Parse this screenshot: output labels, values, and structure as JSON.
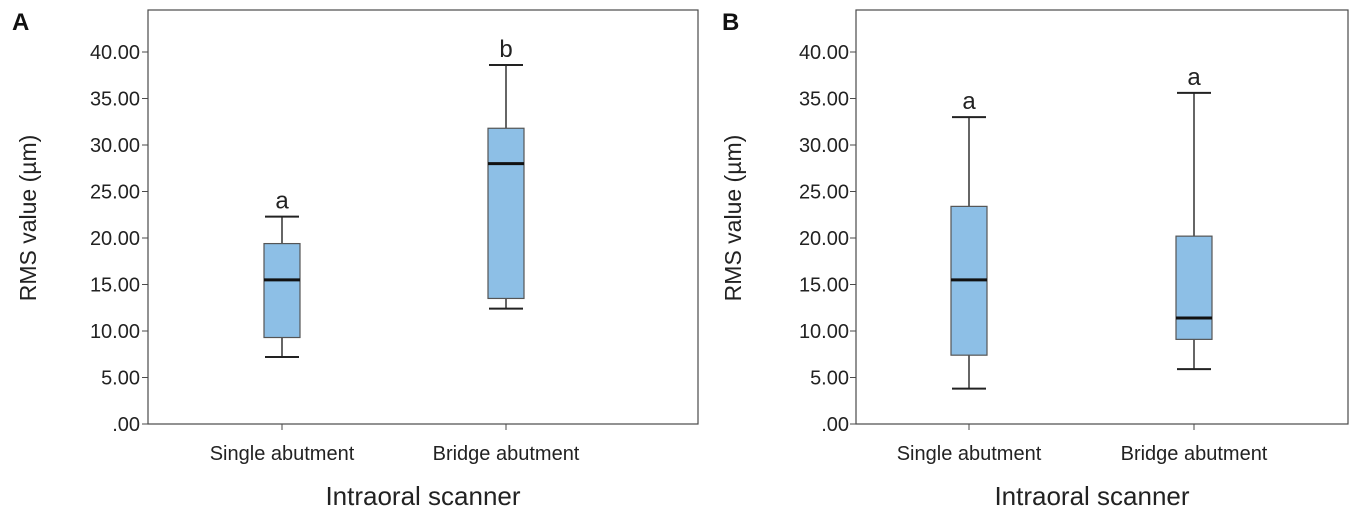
{
  "chart_data": [
    {
      "panel": "A",
      "type": "box",
      "xlabel": "Intraoral scanner",
      "ylabel": "RMS value (µm)",
      "ylim": [
        0,
        40
      ],
      "yticks": [
        ".00",
        "5.00",
        "10.00",
        "15.00",
        "20.00",
        "25.00",
        "30.00",
        "35.00",
        "40.00"
      ],
      "categories": [
        "Single abutment",
        "Bridge abutment"
      ],
      "boxes": [
        {
          "category": "Single abutment",
          "min": 7.2,
          "q1": 9.3,
          "median": 15.5,
          "q3": 19.4,
          "max": 22.3,
          "label": "a"
        },
        {
          "category": "Bridge abutment",
          "min": 12.4,
          "q1": 13.5,
          "median": 28.0,
          "q3": 31.8,
          "max": 38.6,
          "label": "b"
        }
      ],
      "colors": {
        "box_fill": "#8dbfe6",
        "box_stroke": "#555555",
        "median": "#111111"
      }
    },
    {
      "panel": "B",
      "type": "box",
      "xlabel": "Intraoral scanner",
      "ylabel": "RMS value (µm)",
      "ylim": [
        0,
        40
      ],
      "yticks": [
        ".00",
        "5.00",
        "10.00",
        "15.00",
        "20.00",
        "25.00",
        "30.00",
        "35.00",
        "40.00"
      ],
      "categories": [
        "Single abutment",
        "Bridge abutment"
      ],
      "boxes": [
        {
          "category": "Single abutment",
          "min": 3.8,
          "q1": 7.4,
          "median": 15.5,
          "q3": 23.4,
          "max": 33.0,
          "label": "a"
        },
        {
          "category": "Bridge abutment",
          "min": 5.9,
          "q1": 9.1,
          "median": 11.4,
          "q3": 20.2,
          "max": 35.6,
          "label": "a"
        }
      ],
      "colors": {
        "box_fill": "#8dbfe6",
        "box_stroke": "#555555",
        "median": "#111111"
      }
    }
  ]
}
